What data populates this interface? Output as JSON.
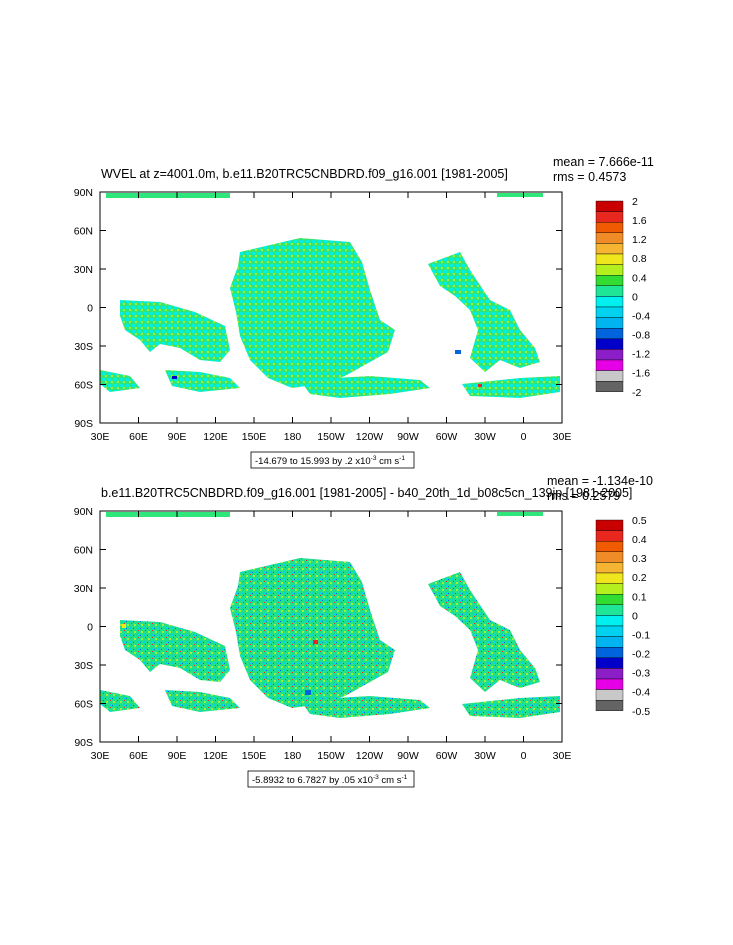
{
  "chart_data": [
    {
      "type": "heatmap",
      "title": "WVEL at z=4001.0m, b.e11.B20TRC5CNBDRD.f09_g16.001 [1981-2005]",
      "stats": [
        "mean = 7.666e-11",
        "rms = 0.4573"
      ],
      "x_ticks": [
        "30E",
        "60E",
        "90E",
        "120E",
        "150E",
        "180",
        "150W",
        "120W",
        "90W",
        "60W",
        "30W",
        "0",
        "30E"
      ],
      "y_ticks": [
        "90N",
        "60N",
        "30N",
        "0",
        "30S",
        "60S",
        "90S"
      ],
      "range_note": "-14.679 to 15.993 by .2 x10",
      "range_exp": "-3",
      "range_unit": " cm s",
      "range_unit_exp": "-1",
      "colorbar_labels": [
        "2",
        "1.6",
        "1.2",
        "0.8",
        "0.4",
        "0",
        "-0.4",
        "-0.8",
        "-1.2",
        "-1.6",
        "-2"
      ],
      "colorbar_colors": [
        "#c80000",
        "#e8281e",
        "#f05a00",
        "#f08c28",
        "#f5b432",
        "#f0e61e",
        "#b4f01e",
        "#32dc32",
        "#1ee696",
        "#00f0f0",
        "#00d2f0",
        "#00b4f0",
        "#0064dc",
        "#0000c8",
        "#8c1ec8",
        "#e600e6",
        "#c8c8c8",
        "#646464"
      ],
      "colorbar_position": "right"
    },
    {
      "type": "heatmap",
      "title": "b.e11.B20TRC5CNBDRD.f09_g16.001 [1981-2005] - b40_20th_1d_b08c5cn_139jp [1981-2005]",
      "stats": [
        "mean = -1.134e-10",
        "rms = 0.2579"
      ],
      "x_ticks": [
        "30E",
        "60E",
        "90E",
        "120E",
        "150E",
        "180",
        "150W",
        "120W",
        "90W",
        "60W",
        "30W",
        "0",
        "30E"
      ],
      "y_ticks": [
        "90N",
        "60N",
        "30N",
        "0",
        "30S",
        "60S",
        "90S"
      ],
      "range_note": "-5.8932 to 6.7827 by .05 x10",
      "range_exp": "-3",
      "range_unit": " cm s",
      "range_unit_exp": "-1",
      "colorbar_labels": [
        "0.5",
        "0.4",
        "0.3",
        "0.2",
        "0.1",
        "0",
        "-0.1",
        "-0.2",
        "-0.3",
        "-0.4",
        "-0.5"
      ],
      "colorbar_colors": [
        "#c80000",
        "#e8281e",
        "#f05a00",
        "#f08c28",
        "#f5b432",
        "#f0e61e",
        "#b4f01e",
        "#32dc32",
        "#1ee696",
        "#00f0f0",
        "#00d2f0",
        "#00b4f0",
        "#0064dc",
        "#0000c8",
        "#8c1ec8",
        "#e600e6",
        "#c8c8c8",
        "#646464"
      ],
      "colorbar_position": "right"
    }
  ]
}
